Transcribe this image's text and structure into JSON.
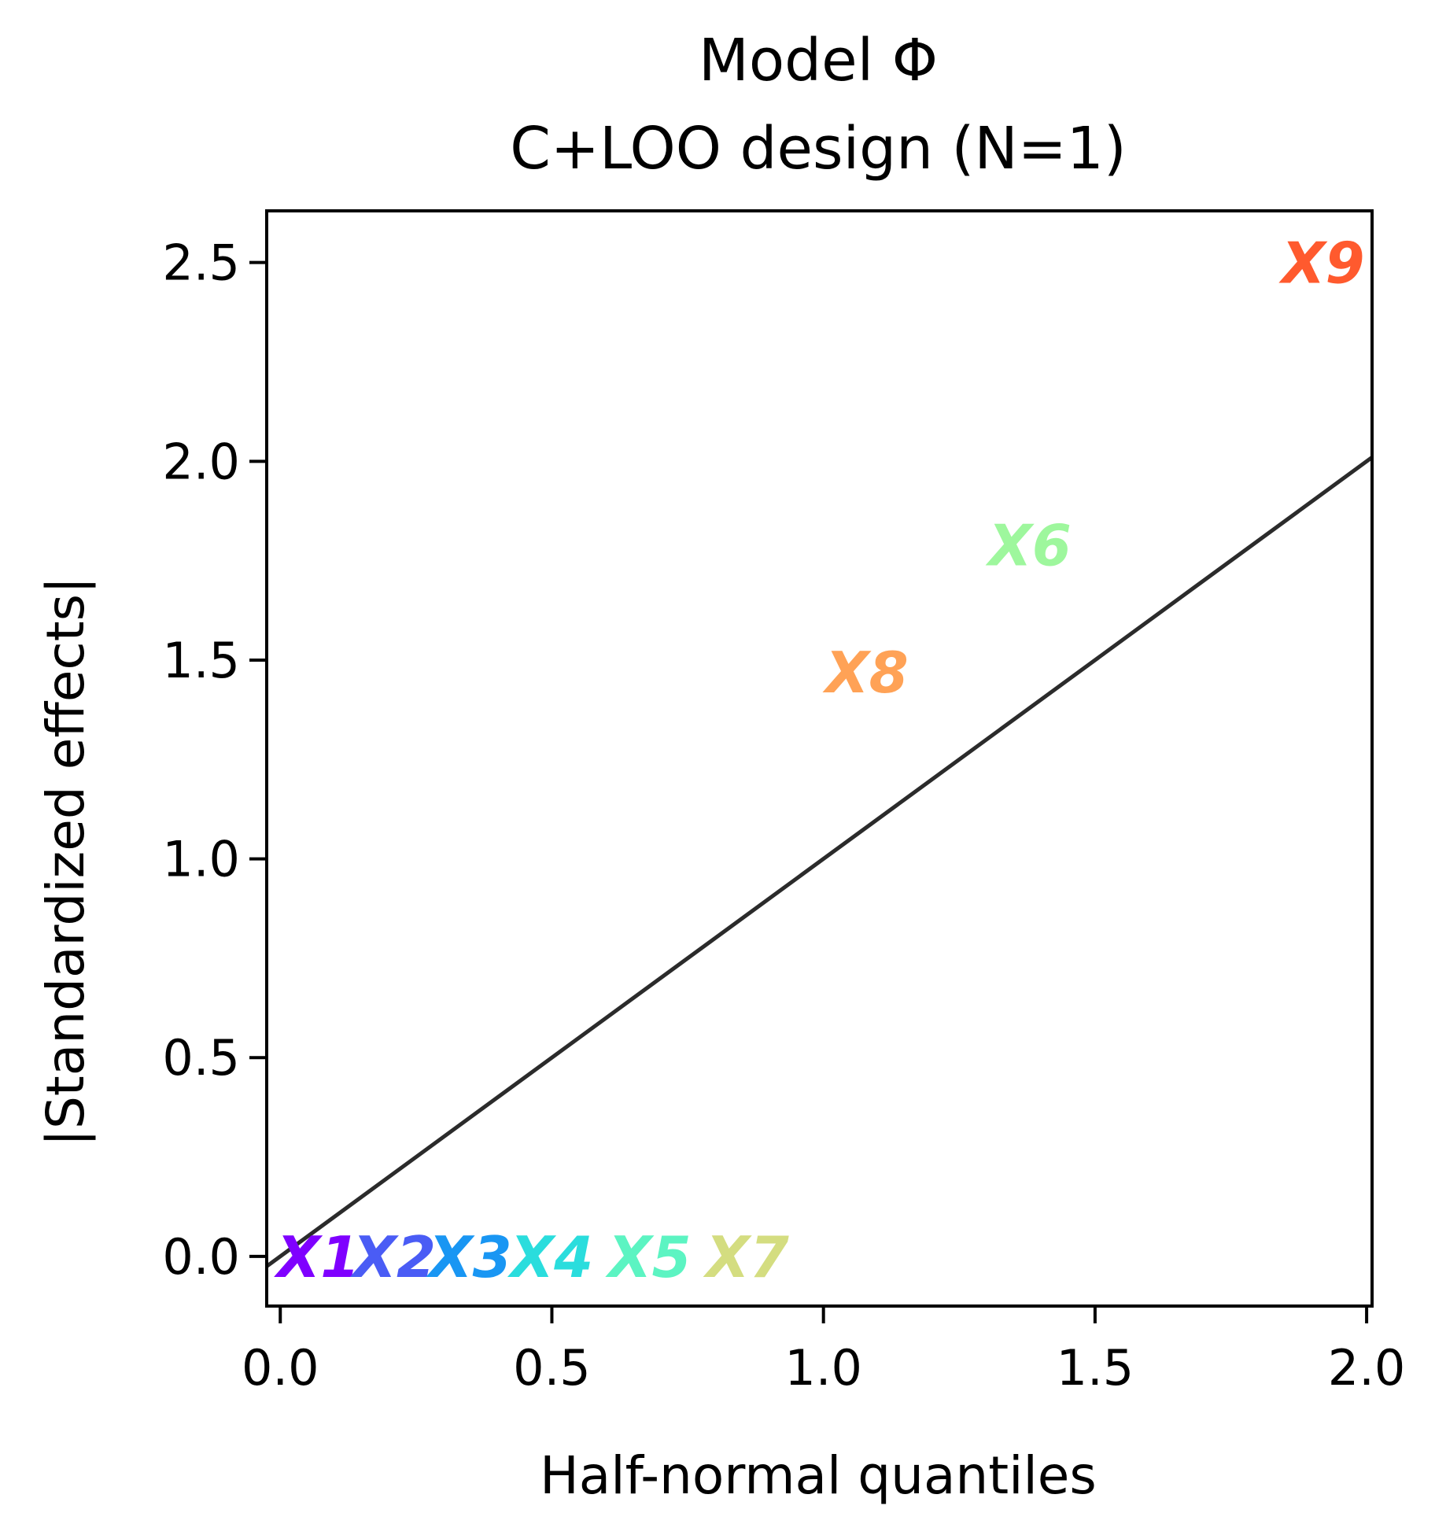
{
  "chart_data": {
    "type": "scatter",
    "title": "Model Φ",
    "subtitle": "C+LOO design (N=1)",
    "xlabel": "Half-normal quantiles",
    "ylabel": "|Standardized effects|",
    "xlim": [
      -0.025,
      2.01
    ],
    "ylim": [
      -0.125,
      2.63
    ],
    "x_ticks": [
      0.0,
      0.5,
      1.0,
      1.5,
      2.0
    ],
    "x_tick_labels": [
      "0.0",
      "0.5",
      "1.0",
      "1.5",
      "2.0"
    ],
    "y_ticks": [
      0.0,
      0.5,
      1.0,
      1.5,
      2.0,
      2.5
    ],
    "y_tick_labels": [
      "0.0",
      "0.5",
      "1.0",
      "1.5",
      "2.0",
      "2.5"
    ],
    "grid": false,
    "reference_line": {
      "x": [
        -0.025,
        2.01
      ],
      "y": [
        -0.025,
        2.01
      ],
      "color": "#2b2b2b"
    },
    "points": [
      {
        "label": "X1",
        "x": 0.07,
        "y": 0.0,
        "color": "#7f00ff"
      },
      {
        "label": "X2",
        "x": 0.21,
        "y": 0.0,
        "color": "#4a5cf5"
      },
      {
        "label": "X3",
        "x": 0.35,
        "y": 0.0,
        "color": "#1996f3"
      },
      {
        "label": "X4",
        "x": 0.5,
        "y": 0.0,
        "color": "#2adddd"
      },
      {
        "label": "X5",
        "x": 0.68,
        "y": 0.0,
        "color": "#5cf4c2"
      },
      {
        "label": "X7",
        "x": 0.86,
        "y": 0.0,
        "color": "#d4dd80"
      },
      {
        "label": "X8",
        "x": 1.08,
        "y": 1.47,
        "color": "#ffa256"
      },
      {
        "label": "X6",
        "x": 1.38,
        "y": 1.79,
        "color": "#9ef79d"
      },
      {
        "label": "X9",
        "x": 1.92,
        "y": 2.5,
        "color": "#ff5a2e"
      }
    ]
  }
}
